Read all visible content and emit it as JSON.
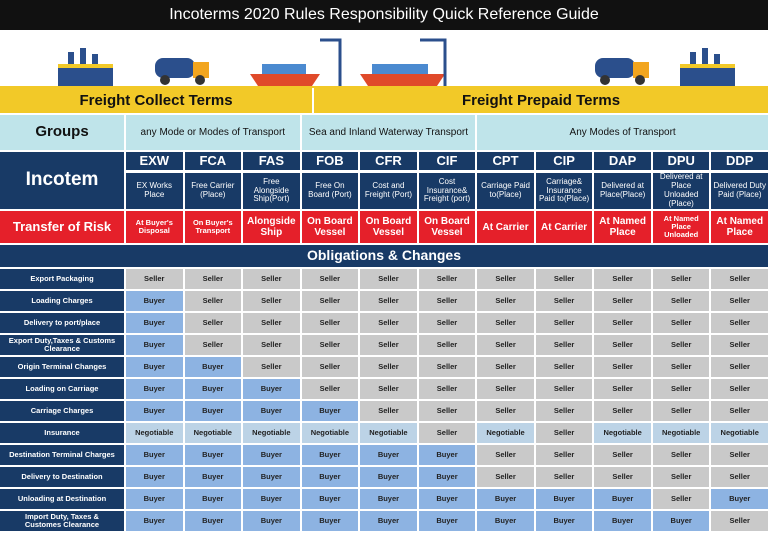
{
  "title": "Incoterms 2020 Rules Responsibility Quick Reference Guide",
  "freight": {
    "collect": "Freight Collect Terms",
    "prepaid": "Freight Prepaid Terms"
  },
  "groups": {
    "label": "Groups",
    "items": [
      {
        "text": "any Mode or Modes of Transport",
        "span": 3
      },
      {
        "text": "Sea and Inland Waterway Transport",
        "span": 3
      },
      {
        "text": "Any Modes of Transport",
        "span": 5
      }
    ]
  },
  "incoterms": {
    "label": "Incotem",
    "codes": [
      "EXW",
      "FCA",
      "FAS",
      "FOB",
      "CFR",
      "CIF",
      "CPT",
      "CIP",
      "DAP",
      "DPU",
      "DDP"
    ],
    "descriptions": [
      "EX Works Place",
      "Free Carrier (Place)",
      "Free Alongside Ship(Port)",
      "Free On Board (Port)",
      "Cost and Freight (Port)",
      "Cost Insurance& Freight (port)",
      "Carriage Paid to(Place)",
      "Carriage& Insurance Paid to(Place)",
      "Delivered at Place(Place)",
      "Delivered at Place Unloaded (Place)",
      "Delivered Duty Paid (Place)"
    ]
  },
  "risk": {
    "label": "Transfer of Risk",
    "values": [
      "At Buyer's Disposal",
      "On Buyer's Transport",
      "Alongside Ship",
      "On Board Vessel",
      "On Board Vessel",
      "On Board Vessel",
      "At Carrier",
      "At Carrier",
      "At Named Place",
      "At Named Place Unloaded",
      "At Named Place"
    ]
  },
  "obligations": {
    "title": "Obligations & Changes",
    "cell_colors": {
      "Seller": "#c9c9c9",
      "Buyer": "#8db3e2",
      "Negotiable": "#bcd3e6"
    },
    "rows": [
      {
        "label": "Export Packaging",
        "cells": [
          "Seller",
          "Seller",
          "Seller",
          "Seller",
          "Seller",
          "Seller",
          "Seller",
          "Seller",
          "Seller",
          "Seller",
          "Seller"
        ]
      },
      {
        "label": "Loading Charges",
        "cells": [
          "Buyer",
          "Seller",
          "Seller",
          "Seller",
          "Seller",
          "Seller",
          "Seller",
          "Seller",
          "Seller",
          "Seller",
          "Seller"
        ]
      },
      {
        "label": "Delivery to port/place",
        "cells": [
          "Buyer",
          "Seller",
          "Seller",
          "Seller",
          "Seller",
          "Seller",
          "Seller",
          "Seller",
          "Seller",
          "Seller",
          "Seller"
        ]
      },
      {
        "label": "Export Duty,Taxes & Customs Clearance",
        "cells": [
          "Buyer",
          "Seller",
          "Seller",
          "Seller",
          "Seller",
          "Seller",
          "Seller",
          "Seller",
          "Seller",
          "Seller",
          "Seller"
        ]
      },
      {
        "label": "Origin Terminal Changes",
        "cells": [
          "Buyer",
          "Buyer",
          "Seller",
          "Seller",
          "Seller",
          "Seller",
          "Seller",
          "Seller",
          "Seller",
          "Seller",
          "Seller"
        ]
      },
      {
        "label": "Loading on Carriage",
        "cells": [
          "Buyer",
          "Buyer",
          "Buyer",
          "Seller",
          "Seller",
          "Seller",
          "Seller",
          "Seller",
          "Seller",
          "Seller",
          "Seller"
        ]
      },
      {
        "label": "Carriage Charges",
        "cells": [
          "Buyer",
          "Buyer",
          "Buyer",
          "Buyer",
          "Seller",
          "Seller",
          "Seller",
          "Seller",
          "Seller",
          "Seller",
          "Seller"
        ]
      },
      {
        "label": "Insurance",
        "cells": [
          "Negotiable",
          "Negotiable",
          "Negotiable",
          "Negotiable",
          "Negotiable",
          "Seller",
          "Negotiable",
          "Seller",
          "Negotiable",
          "Negotiable",
          "Negotiable"
        ]
      },
      {
        "label": "Destination Terminal Charges",
        "cells": [
          "Buyer",
          "Buyer",
          "Buyer",
          "Buyer",
          "Buyer",
          "Buyer",
          "Seller",
          "Seller",
          "Seller",
          "Seller",
          "Seller"
        ]
      },
      {
        "label": "Delivery to Destination",
        "cells": [
          "Buyer",
          "Buyer",
          "Buyer",
          "Buyer",
          "Buyer",
          "Buyer",
          "Seller",
          "Seller",
          "Seller",
          "Seller",
          "Seller"
        ]
      },
      {
        "label": "Unloading at Destination",
        "cells": [
          "Buyer",
          "Buyer",
          "Buyer",
          "Buyer",
          "Buyer",
          "Buyer",
          "Buyer",
          "Buyer",
          "Buyer",
          "Seller",
          "Buyer"
        ]
      },
      {
        "label": "Import Duty, Taxes & Customes Clearance",
        "cells": [
          "Buyer",
          "Buyer",
          "Buyer",
          "Buyer",
          "Buyer",
          "Buyer",
          "Buyer",
          "Buyer",
          "Buyer",
          "Buyer",
          "Seller"
        ]
      }
    ]
  }
}
